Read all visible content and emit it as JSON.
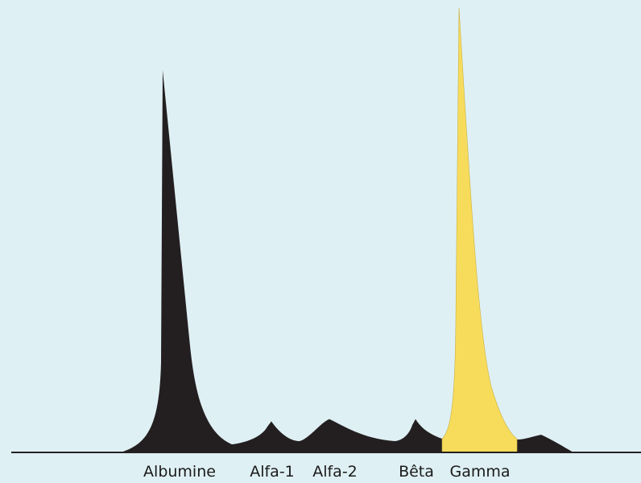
{
  "chart_data": {
    "type": "area",
    "title": "",
    "xlabel": "",
    "ylabel": "",
    "grid": false,
    "legend": "none",
    "colors": {
      "background": "#dff0f4",
      "profile": "#231f20",
      "highlight": "#f7dc5c",
      "baseline": "#231f20"
    },
    "highlighted_fraction": "Gamma",
    "fractions": [
      {
        "label": "Albumine",
        "peak": 86
      },
      {
        "label": "Alfa-1",
        "peak": 7
      },
      {
        "label": "Alfa-2",
        "peak": 7.5
      },
      {
        "label": "Bêta",
        "peak": 7.5
      },
      {
        "label": "Gamma",
        "peak": 100
      }
    ],
    "ylim": [
      0,
      100
    ]
  }
}
